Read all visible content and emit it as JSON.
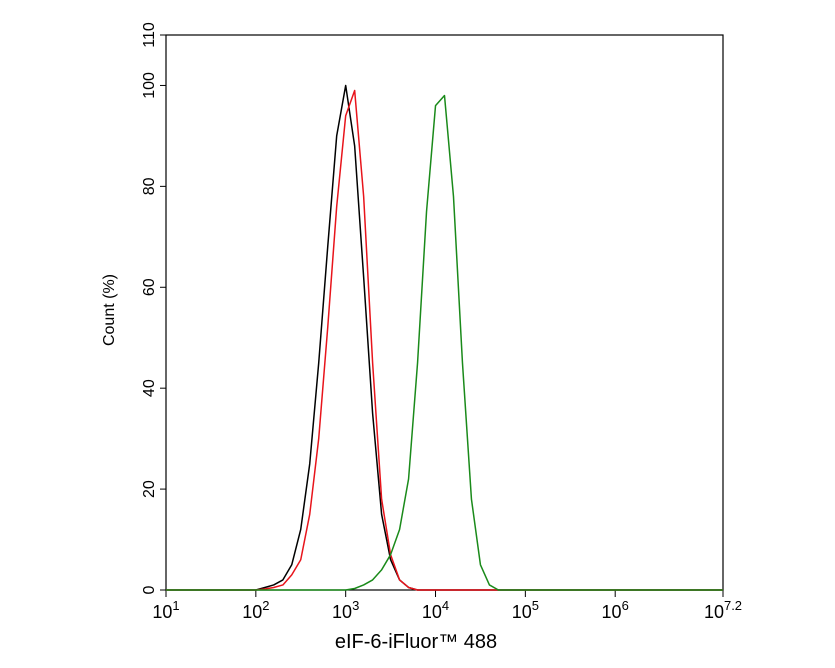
{
  "chart_data": {
    "type": "line",
    "x_label": "eIF-6-iFluor™ 488",
    "y_label": "Count  (%)",
    "xscale": "log",
    "xlim": [
      10,
      15848932
    ],
    "ylim": [
      0,
      110
    ],
    "xticks": [
      {
        "value": 10,
        "label": "10",
        "exponent": "1"
      },
      {
        "value": 100,
        "label": "10",
        "exponent": "2"
      },
      {
        "value": 1000,
        "label": "10",
        "exponent": "3"
      },
      {
        "value": 10000,
        "label": "10",
        "exponent": "4"
      },
      {
        "value": 100000,
        "label": "10",
        "exponent": "5"
      },
      {
        "value": 1000000,
        "label": "10",
        "exponent": "6"
      },
      {
        "value": 15848932,
        "label": "10",
        "exponent": "7.2"
      }
    ],
    "yticks": [
      0,
      20,
      40,
      60,
      80,
      100,
      110
    ],
    "x": [
      10,
      100,
      126,
      158,
      200,
      251,
      316,
      398,
      501,
      631,
      794,
      1000,
      1259,
      1585,
      1995,
      2512,
      3162,
      3981,
      5012,
      6310,
      7943,
      10000,
      12589,
      15849,
      19953,
      25119,
      31623,
      39811,
      50119,
      63096,
      15848932
    ],
    "series": [
      {
        "color": "#000000",
        "values": [
          0,
          0,
          0.5,
          1,
          2,
          5,
          12,
          25,
          45,
          68,
          90,
          100,
          88,
          62,
          35,
          15,
          6,
          2,
          0.5,
          0,
          0,
          0,
          0,
          0,
          0,
          0,
          0,
          0,
          0,
          0,
          0
        ]
      },
      {
        "color": "#e8141b",
        "values": [
          0,
          0,
          0.2,
          0.5,
          1,
          3,
          6,
          15,
          30,
          52,
          76,
          94,
          99,
          78,
          45,
          18,
          7,
          2,
          0.5,
          0,
          0,
          0,
          0,
          0,
          0,
          0,
          0,
          0,
          0,
          0,
          0
        ]
      },
      {
        "color": "#1a8a1a",
        "values": [
          0,
          0,
          0,
          0,
          0,
          0,
          0,
          0,
          0,
          0,
          0,
          0,
          0.3,
          1,
          2,
          4,
          7,
          12,
          22,
          45,
          75,
          96,
          98,
          78,
          45,
          18,
          5,
          1,
          0,
          0,
          0
        ]
      }
    ]
  }
}
